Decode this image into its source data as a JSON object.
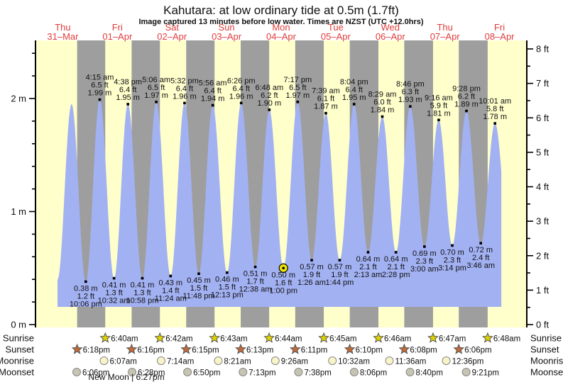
{
  "page": {
    "title": "Kahutara: at low  ordinary tide at 0.5m (1.7ft)",
    "subtitle": "Image captured 13 minutes before low water. Times are NZST (UTC +12.0hrs)"
  },
  "colors": {
    "day_stripe": "#ffffcc",
    "night_stripe": "#9e9e9e",
    "tide_fill": "#a2b1f2",
    "date_label": "#e03c3c",
    "sunrise_star": "#ddd000",
    "sunset_star": "#c06a38",
    "moonrise_fill": "#f8f4c8",
    "moonset_fill": "#c6c4b2",
    "icon_stroke": "#555555",
    "current_marker": "#ede400",
    "axis": "#000000"
  },
  "chart_data": {
    "type": "area",
    "title": "Kahutara: at low  ordinary tide at 0.5m (1.7ft)",
    "subtitle": "Image captured 13 minutes before low water. Times are NZST (UTC +12.0hrs)",
    "x_days": [
      {
        "dow": "Thu",
        "date": "31–Mar"
      },
      {
        "dow": "Fri",
        "date": "01–Apr"
      },
      {
        "dow": "Sat",
        "date": "02–Apr"
      },
      {
        "dow": "Sun",
        "date": "03–Apr"
      },
      {
        "dow": "Mon",
        "date": "04–Apr"
      },
      {
        "dow": "Tue",
        "date": "05–Apr"
      },
      {
        "dow": "Wed",
        "date": "06–Apr"
      },
      {
        "dow": "Thu",
        "date": "07–Apr"
      },
      {
        "dow": "Fri",
        "date": "08–Apr"
      }
    ],
    "y_axis_left": {
      "unit": "m",
      "major_ticks": [
        0,
        1,
        2
      ],
      "minor_step": 0.2,
      "minor_max": 2.4,
      "labels": [
        "0 m",
        "1 m",
        "2 m"
      ]
    },
    "y_axis_right": {
      "unit": "ft",
      "major_ticks": [
        0,
        1,
        2,
        3,
        4,
        5,
        6,
        7,
        8
      ],
      "minor_step": 0.5,
      "labels": [
        "0 ft",
        "1 ft",
        "2 ft",
        "3 ft",
        "4 ft",
        "5 ft",
        "6 ft",
        "7 ft",
        "8 ft"
      ]
    },
    "data_window": [
      9.68,
      204.78
    ],
    "tide_extremes": [
      {
        "t": 9.68,
        "h": 0.4,
        "type": "low",
        "labeled": false
      },
      {
        "t": 15.85,
        "h": 1.95,
        "type": "high",
        "labeled": false
      },
      {
        "t": 22.1,
        "h": 0.38,
        "type": "low",
        "labeled": true,
        "time": "10:06 pm",
        "ft": "1.2 ft",
        "m": "0.38 m"
      },
      {
        "t": 28.25,
        "h": 1.99,
        "type": "high",
        "labeled": true,
        "time": "4:15 am",
        "ft": "6.5 ft",
        "m": "1.99 m"
      },
      {
        "t": 34.53,
        "h": 0.41,
        "type": "low",
        "labeled": true,
        "time": "10:32 am",
        "ft": "1.3 ft",
        "m": "0.41 m"
      },
      {
        "t": 40.63,
        "h": 1.95,
        "type": "high",
        "labeled": true,
        "time": "4:38 pm",
        "ft": "6.4 ft",
        "m": "1.95 m"
      },
      {
        "t": 46.97,
        "h": 0.41,
        "type": "low",
        "labeled": true,
        "time": "10:58 pm",
        "ft": "1.3 ft",
        "m": "0.41 m"
      },
      {
        "t": 53.1,
        "h": 1.97,
        "type": "high",
        "labeled": true,
        "time": "5:06 am",
        "ft": "6.5 ft",
        "m": "1.97 m"
      },
      {
        "t": 59.4,
        "h": 0.43,
        "type": "low",
        "labeled": true,
        "time": "11:24 am",
        "ft": "1.4 ft",
        "m": "0.43 m"
      },
      {
        "t": 65.53,
        "h": 1.96,
        "type": "high",
        "labeled": true,
        "time": "5:32 pm",
        "ft": "6.4 ft",
        "m": "1.96 m"
      },
      {
        "t": 71.8,
        "h": 0.45,
        "type": "low",
        "labeled": true,
        "time": "11:48 pm",
        "ft": "1.5 ft",
        "m": "0.45 m"
      },
      {
        "t": 77.93,
        "h": 1.94,
        "type": "high",
        "labeled": true,
        "time": "5:56 am",
        "ft": "6.4 ft",
        "m": "1.94 m"
      },
      {
        "t": 84.22,
        "h": 0.46,
        "type": "low",
        "labeled": true,
        "time": "12:13 pm",
        "ft": "1.5 ft",
        "m": "0.46 m"
      },
      {
        "t": 90.43,
        "h": 1.96,
        "type": "high",
        "labeled": true,
        "time": "6:26 pm",
        "ft": "6.4 ft",
        "m": "1.96 m"
      },
      {
        "t": 96.63,
        "h": 0.51,
        "type": "low",
        "labeled": true,
        "time": "12:38 am",
        "ft": "1.7 ft",
        "m": "0.51 m"
      },
      {
        "t": 102.8,
        "h": 1.9,
        "type": "high",
        "labeled": true,
        "time": "6:48 am",
        "ft": "6.2 ft",
        "m": "1.90 m"
      },
      {
        "t": 109.0,
        "h": 0.5,
        "type": "low",
        "labeled": true,
        "current": true,
        "time": "1:00 pm",
        "ft": "1.6 ft",
        "m": "0.50 m"
      },
      {
        "t": 115.28,
        "h": 1.97,
        "type": "high",
        "labeled": true,
        "time": "7:17 pm",
        "ft": "6.5 ft",
        "m": "1.97 m"
      },
      {
        "t": 121.43,
        "h": 0.57,
        "type": "low",
        "labeled": true,
        "time": "1:26 am",
        "ft": "1.9 ft",
        "m": "0.57 m"
      },
      {
        "t": 127.65,
        "h": 1.87,
        "type": "high",
        "labeled": true,
        "time": "7:39 am",
        "ft": "6.1 ft",
        "m": "1.87 m"
      },
      {
        "t": 133.73,
        "h": 0.57,
        "type": "low",
        "labeled": true,
        "time": "1:44 pm",
        "ft": "1.9 ft",
        "m": "0.57 m"
      },
      {
        "t": 140.07,
        "h": 1.95,
        "type": "high",
        "labeled": true,
        "time": "8:04 pm",
        "ft": "6.4 ft",
        "m": "1.95 m"
      },
      {
        "t": 146.22,
        "h": 0.64,
        "type": "low",
        "labeled": true,
        "time": "2:13 am",
        "ft": "2.1 ft",
        "m": "0.64 m"
      },
      {
        "t": 152.48,
        "h": 1.84,
        "type": "high",
        "labeled": true,
        "time": "8:29 am",
        "ft": "6.0 ft",
        "m": "1.84 m"
      },
      {
        "t": 158.47,
        "h": 0.64,
        "type": "low",
        "labeled": true,
        "time": "2:28 pm",
        "ft": "2.1 ft",
        "m": "0.64 m"
      },
      {
        "t": 164.77,
        "h": 1.93,
        "type": "high",
        "labeled": true,
        "time": "8:46 pm",
        "ft": "6.3 ft",
        "m": "1.93 m"
      },
      {
        "t": 171.0,
        "h": 0.69,
        "type": "low",
        "labeled": true,
        "time": "3:00 am",
        "ft": "2.3 ft",
        "m": "0.69 m"
      },
      {
        "t": 177.27,
        "h": 1.81,
        "type": "high",
        "labeled": true,
        "time": "9:16 am",
        "ft": "5.9 ft",
        "m": "1.81 m"
      },
      {
        "t": 183.23,
        "h": 0.7,
        "type": "low",
        "labeled": true,
        "time": "3:14 pm",
        "ft": "2.3 ft",
        "m": "0.70 m"
      },
      {
        "t": 189.47,
        "h": 1.89,
        "type": "high",
        "labeled": true,
        "time": "9:28 pm",
        "ft": "6.2 ft",
        "m": "1.89 m"
      },
      {
        "t": 195.77,
        "h": 0.72,
        "type": "low",
        "labeled": true,
        "time": "3:46 am",
        "ft": "2.4 ft",
        "m": "0.72 m"
      },
      {
        "t": 202.02,
        "h": 1.78,
        "type": "high",
        "labeled": true,
        "time": "10:01 am",
        "ft": "5.8 ft",
        "m": "1.78 m"
      },
      {
        "t": 208.3,
        "h": 0.75,
        "type": "low",
        "labeled": false
      }
    ],
    "current_marker": {
      "t": 109.0,
      "h": 0.5
    },
    "sun_moon_rows": [
      {
        "key": "sunrise",
        "label": "Sunrise",
        "icon": "star-yellow",
        "events": [
          {
            "t": 30.67,
            "label": "6:40am"
          },
          {
            "t": 54.7,
            "label": "6:42am"
          },
          {
            "t": 78.72,
            "label": "6:43am"
          },
          {
            "t": 102.73,
            "label": "6:44am"
          },
          {
            "t": 126.75,
            "label": "6:45am"
          },
          {
            "t": 150.77,
            "label": "6:46am"
          },
          {
            "t": 174.78,
            "label": "6:47am"
          },
          {
            "t": 198.8,
            "label": "6:48am"
          }
        ]
      },
      {
        "key": "sunset",
        "label": "Sunset",
        "icon": "star-orange",
        "events": [
          {
            "t": 18.3,
            "label": "6:18pm"
          },
          {
            "t": 42.27,
            "label": "6:16pm"
          },
          {
            "t": 66.25,
            "label": "6:15pm"
          },
          {
            "t": 90.22,
            "label": "6:13pm"
          },
          {
            "t": 114.18,
            "label": "6:11pm"
          },
          {
            "t": 138.17,
            "label": "6:10pm"
          },
          {
            "t": 162.13,
            "label": "6:08pm"
          },
          {
            "t": 186.1,
            "label": "6:06pm"
          }
        ]
      },
      {
        "key": "moonrise",
        "label": "Moonrise",
        "icon": "moon-light",
        "events": [
          {
            "t": 30.12,
            "label": "6:07am"
          },
          {
            "t": 55.23,
            "label": "7:14am"
          },
          {
            "t": 80.35,
            "label": "8:21am"
          },
          {
            "t": 105.43,
            "label": "9:26am"
          },
          {
            "t": 130.53,
            "label": "10:32am"
          },
          {
            "t": 155.6,
            "label": "11:36am"
          },
          {
            "t": 180.6,
            "label": "12:36pm"
          }
        ]
      },
      {
        "key": "moonset",
        "label": "Moonset",
        "icon": "moon-dark",
        "events": [
          {
            "t": 18.1,
            "label": "6:06pm"
          },
          {
            "t": 42.47,
            "label": "6:28pm"
          },
          {
            "t": 66.83,
            "label": "6:50pm"
          },
          {
            "t": 91.22,
            "label": "7:13pm"
          },
          {
            "t": 115.63,
            "label": "7:38pm"
          },
          {
            "t": 140.1,
            "label": "8:06pm"
          },
          {
            "t": 164.67,
            "label": "8:40pm"
          },
          {
            "t": 189.35,
            "label": "9:21pm"
          }
        ]
      }
    ],
    "new_moon": {
      "label": "New Moon | 6:27pm",
      "t": 42.45
    }
  }
}
